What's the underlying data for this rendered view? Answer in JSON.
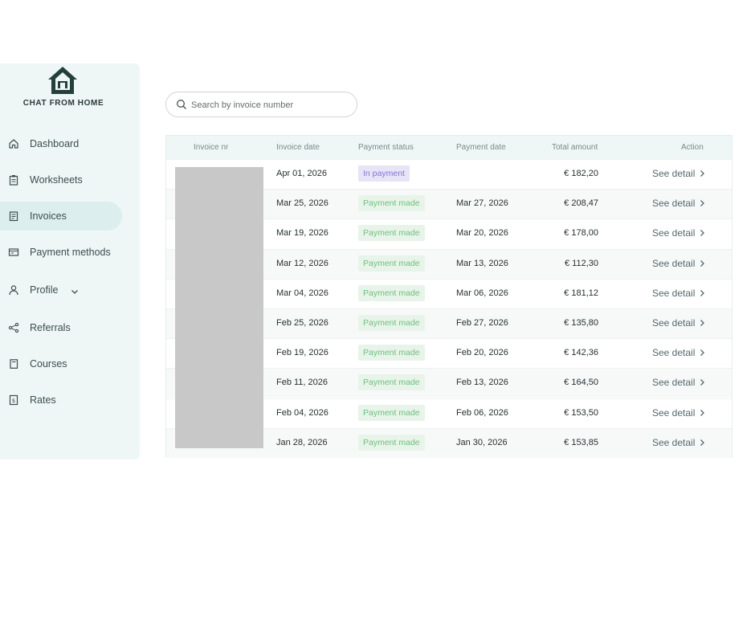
{
  "brand": {
    "name": "CHAT FROM HOME",
    "logo_icon": "house-icon"
  },
  "sidebar": {
    "items": [
      {
        "label": "Dashboard",
        "icon": "home-icon",
        "active": false
      },
      {
        "label": "Worksheets",
        "icon": "clipboard-icon",
        "active": false
      },
      {
        "label": "Invoices",
        "icon": "invoice-icon",
        "active": true
      },
      {
        "label": "Payment methods",
        "icon": "wallet-icon",
        "active": false
      },
      {
        "label": "Profile",
        "icon": "user-icon",
        "active": false,
        "expandable": true
      },
      {
        "label": "Referrals",
        "icon": "share-icon",
        "active": false
      },
      {
        "label": "Courses",
        "icon": "book-icon",
        "active": false
      },
      {
        "label": "Rates",
        "icon": "dollar-icon",
        "active": false
      }
    ]
  },
  "search": {
    "placeholder": "Search by invoice number",
    "value": ""
  },
  "table": {
    "headers": {
      "invoice_nr": "Invoice nr",
      "invoice_date": "Invoice date",
      "payment_status": "Payment status",
      "payment_date": "Payment date",
      "total_amount": "Total amount",
      "action": "Action"
    },
    "action_label": "See detail",
    "rows": [
      {
        "invoice_date": "Apr 01, 2026",
        "status": "In payment",
        "status_type": "pending",
        "payment_date": "",
        "amount": "€ 182,20"
      },
      {
        "invoice_date": "Mar 25, 2026",
        "status": "Payment made",
        "status_type": "made",
        "payment_date": "Mar 27, 2026",
        "amount": "€ 208,47"
      },
      {
        "invoice_date": "Mar 19, 2026",
        "status": "Payment made",
        "status_type": "made",
        "payment_date": "Mar 20, 2026",
        "amount": "€ 178,00"
      },
      {
        "invoice_date": "Mar 12, 2026",
        "status": "Payment made",
        "status_type": "made",
        "payment_date": "Mar 13, 2026",
        "amount": "€ 112,30"
      },
      {
        "invoice_date": "Mar 04, 2026",
        "status": "Payment made",
        "status_type": "made",
        "payment_date": "Mar 06, 2026",
        "amount": "€ 181,12"
      },
      {
        "invoice_date": "Feb 25, 2026",
        "status": "Payment made",
        "status_type": "made",
        "payment_date": "Feb 27, 2026",
        "amount": "€ 135,80"
      },
      {
        "invoice_date": "Feb 19, 2026",
        "status": "Payment made",
        "status_type": "made",
        "payment_date": "Feb 20, 2026",
        "amount": "€ 142,36"
      },
      {
        "invoice_date": "Feb 11, 2026",
        "status": "Payment made",
        "status_type": "made",
        "payment_date": "Feb 13, 2026",
        "amount": "€ 164,50"
      },
      {
        "invoice_date": "Feb 04, 2026",
        "status": "Payment made",
        "status_type": "made",
        "payment_date": "Feb 06, 2026",
        "amount": "€ 153,50"
      },
      {
        "invoice_date": "Jan 28, 2026",
        "status": "Payment made",
        "status_type": "made",
        "payment_date": "Jan 30, 2026",
        "amount": "€ 153,85"
      }
    ]
  },
  "colors": {
    "sidebar_bg": "#eef6f6",
    "active_bg": "#ddeeee",
    "status_made": "#6fc07d",
    "status_pending": "#8a76d2",
    "brand_dark": "#2b3a38"
  }
}
